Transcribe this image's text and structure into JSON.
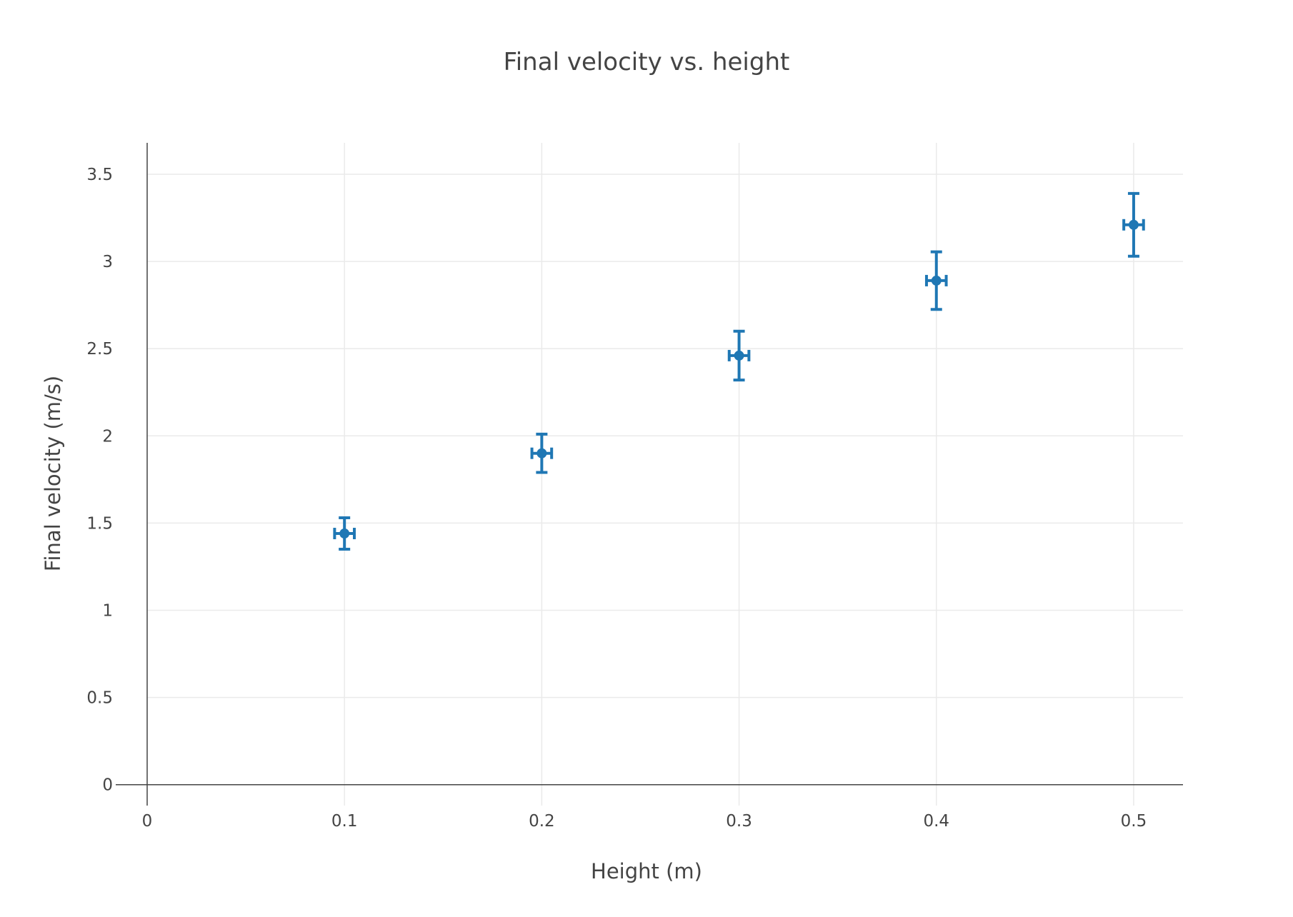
{
  "chart_data": {
    "type": "scatter",
    "title": "Final velocity vs. height",
    "xlabel": "Height (m)",
    "ylabel": "Final velocity (m/s)",
    "xlim": [
      0,
      0.525
    ],
    "ylim": [
      -0.12,
      3.68
    ],
    "x_ticks": [
      "0",
      "0.1",
      "0.2",
      "0.3",
      "0.4",
      "0.5"
    ],
    "x_tick_values": [
      0,
      0.1,
      0.2,
      0.3,
      0.4,
      0.5
    ],
    "y_ticks": [
      "0",
      "0.5",
      "1",
      "1.5",
      "2",
      "2.5",
      "3",
      "3.5"
    ],
    "y_tick_values": [
      0,
      0.5,
      1,
      1.5,
      2,
      2.5,
      3,
      3.5
    ],
    "grid": true,
    "marker_color": "#1f77b4",
    "series": [
      {
        "x": [
          0.1,
          0.2,
          0.3,
          0.4,
          0.5
        ],
        "y": [
          1.44,
          1.9,
          2.46,
          2.89,
          3.21
        ],
        "y_error": [
          0.09,
          0.11,
          0.14,
          0.165,
          0.18
        ],
        "x_error": [
          0.005,
          0.005,
          0.005,
          0.005,
          0.005
        ]
      }
    ]
  }
}
